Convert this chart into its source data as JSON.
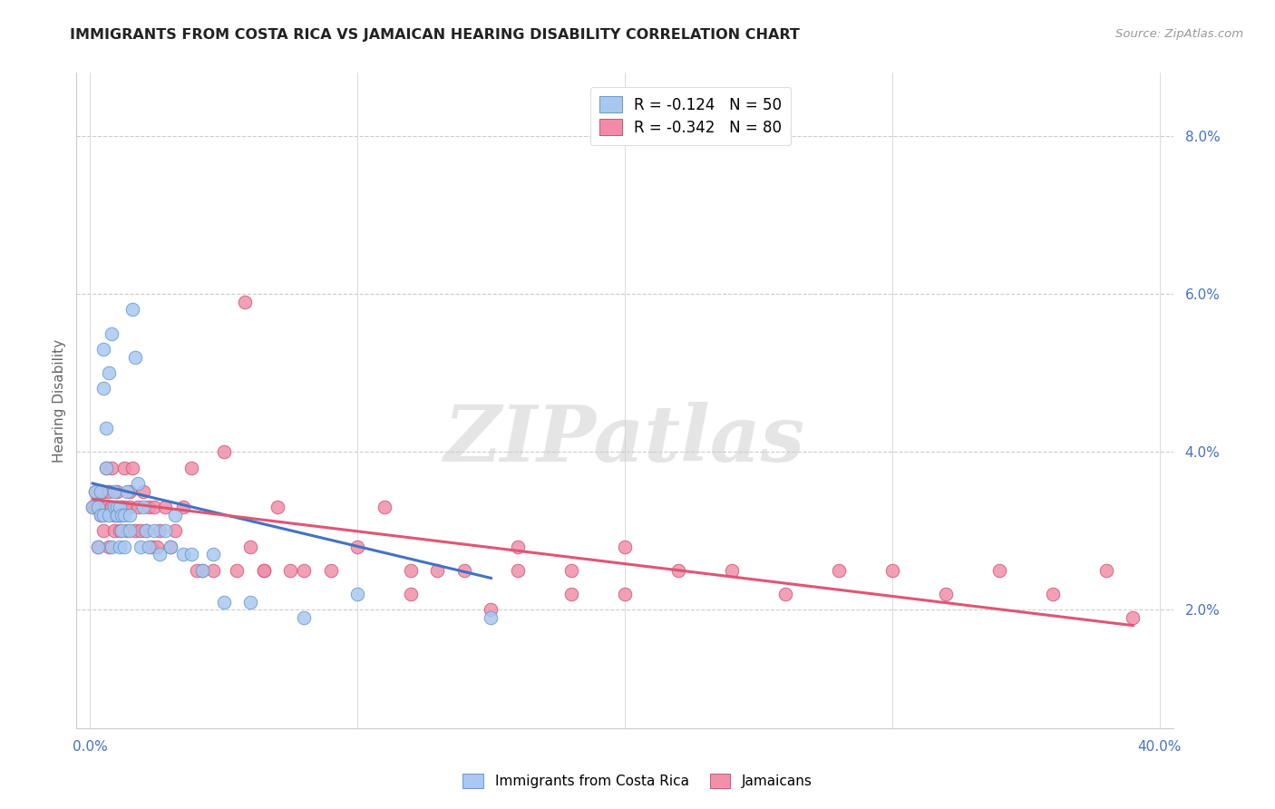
{
  "title": "IMMIGRANTS FROM COSTA RICA VS JAMAICAN HEARING DISABILITY CORRELATION CHART",
  "source": "Source: ZipAtlas.com",
  "ylabel": "Hearing Disability",
  "watermark_text": "ZIPatlas",
  "legend_top": [
    {
      "label": "R = -0.124   N = 50",
      "color": "#a8c8f0"
    },
    {
      "label": "R = -0.342   N = 80",
      "color": "#f48aaa"
    }
  ],
  "legend_bottom": [
    "Immigrants from Costa Rica",
    "Jamaicans"
  ],
  "ytick_labels": [
    "2.0%",
    "4.0%",
    "6.0%",
    "8.0%"
  ],
  "ytick_values": [
    0.02,
    0.04,
    0.06,
    0.08
  ],
  "xtick_values": [
    0.0,
    0.1,
    0.2,
    0.3,
    0.4
  ],
  "xlim": [
    -0.005,
    0.405
  ],
  "ylim": [
    0.005,
    0.088
  ],
  "blue_color": "#aac8f0",
  "blue_edge": "#6699cc",
  "pink_color": "#f090aa",
  "pink_edge": "#cc5577",
  "trendline_blue": "#4472c4",
  "trendline_pink": "#e05575",
  "axis_label_color": "#4472c4",
  "ylabel_color": "#666666",
  "background_color": "#ffffff",
  "grid_color": "#cccccc",
  "title_fontsize": 11.5,
  "source_fontsize": 9.5,
  "tick_fontsize": 11,
  "marker_size": 110,
  "blue_scatter_x": [
    0.001,
    0.002,
    0.003,
    0.003,
    0.004,
    0.004,
    0.005,
    0.005,
    0.005,
    0.006,
    0.006,
    0.007,
    0.007,
    0.008,
    0.008,
    0.009,
    0.009,
    0.01,
    0.01,
    0.01,
    0.011,
    0.011,
    0.012,
    0.012,
    0.013,
    0.013,
    0.014,
    0.015,
    0.015,
    0.016,
    0.017,
    0.018,
    0.019,
    0.02,
    0.021,
    0.022,
    0.024,
    0.026,
    0.028,
    0.03,
    0.032,
    0.035,
    0.038,
    0.042,
    0.046,
    0.05,
    0.06,
    0.08,
    0.1,
    0.15
  ],
  "blue_scatter_y": [
    0.033,
    0.035,
    0.033,
    0.028,
    0.035,
    0.032,
    0.048,
    0.053,
    0.032,
    0.043,
    0.038,
    0.032,
    0.05,
    0.055,
    0.028,
    0.033,
    0.035,
    0.032,
    0.033,
    0.032,
    0.028,
    0.033,
    0.032,
    0.03,
    0.028,
    0.032,
    0.035,
    0.03,
    0.032,
    0.058,
    0.052,
    0.036,
    0.028,
    0.033,
    0.03,
    0.028,
    0.03,
    0.027,
    0.03,
    0.028,
    0.032,
    0.027,
    0.027,
    0.025,
    0.027,
    0.021,
    0.021,
    0.019,
    0.022,
    0.019
  ],
  "pink_scatter_x": [
    0.001,
    0.002,
    0.002,
    0.003,
    0.003,
    0.004,
    0.004,
    0.005,
    0.005,
    0.005,
    0.006,
    0.006,
    0.007,
    0.007,
    0.008,
    0.008,
    0.009,
    0.009,
    0.01,
    0.01,
    0.011,
    0.011,
    0.012,
    0.013,
    0.013,
    0.014,
    0.015,
    0.015,
    0.016,
    0.017,
    0.018,
    0.019,
    0.02,
    0.021,
    0.022,
    0.023,
    0.024,
    0.025,
    0.026,
    0.028,
    0.03,
    0.032,
    0.035,
    0.038,
    0.042,
    0.046,
    0.05,
    0.055,
    0.06,
    0.065,
    0.07,
    0.08,
    0.09,
    0.1,
    0.11,
    0.12,
    0.13,
    0.15,
    0.16,
    0.18,
    0.2,
    0.22,
    0.24,
    0.26,
    0.28,
    0.3,
    0.32,
    0.34,
    0.36,
    0.38,
    0.12,
    0.14,
    0.16,
    0.18,
    0.2,
    0.058,
    0.065,
    0.075,
    0.04,
    0.39
  ],
  "pink_scatter_y": [
    0.033,
    0.033,
    0.035,
    0.033,
    0.028,
    0.035,
    0.032,
    0.033,
    0.035,
    0.03,
    0.038,
    0.033,
    0.035,
    0.028,
    0.038,
    0.033,
    0.03,
    0.032,
    0.033,
    0.035,
    0.03,
    0.032,
    0.033,
    0.038,
    0.033,
    0.03,
    0.033,
    0.035,
    0.038,
    0.03,
    0.033,
    0.03,
    0.035,
    0.03,
    0.033,
    0.028,
    0.033,
    0.028,
    0.03,
    0.033,
    0.028,
    0.03,
    0.033,
    0.038,
    0.025,
    0.025,
    0.04,
    0.025,
    0.028,
    0.025,
    0.033,
    0.025,
    0.025,
    0.028,
    0.033,
    0.025,
    0.025,
    0.02,
    0.028,
    0.025,
    0.028,
    0.025,
    0.025,
    0.022,
    0.025,
    0.025,
    0.022,
    0.025,
    0.022,
    0.025,
    0.022,
    0.025,
    0.025,
    0.022,
    0.022,
    0.059,
    0.025,
    0.025,
    0.025,
    0.019
  ],
  "blue_trend_x": [
    0.001,
    0.15
  ],
  "blue_trend_y_start": 0.036,
  "blue_trend_y_end": 0.024,
  "pink_trend_x": [
    0.001,
    0.39
  ],
  "pink_trend_y_start": 0.034,
  "pink_trend_y_end": 0.018
}
